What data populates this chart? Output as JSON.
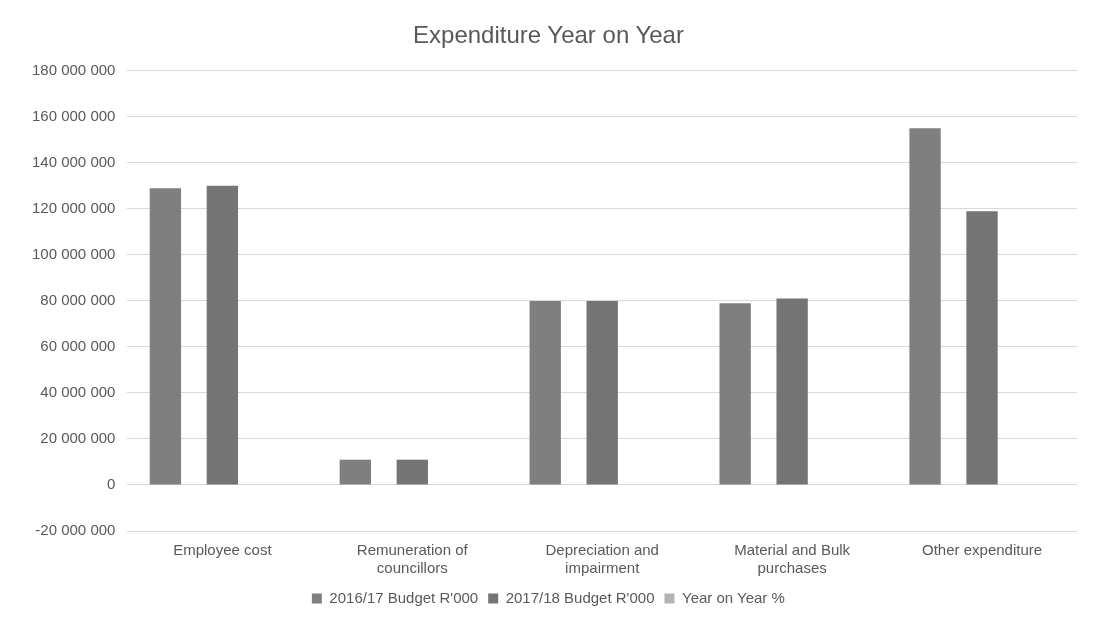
{
  "chart_data": {
    "type": "bar",
    "title": "Expenditure Year on Year",
    "categories": [
      "Employee cost",
      "Remuneration of councillors",
      "Depreciation and impairment",
      "Material and Bulk purchases",
      "Other expenditure"
    ],
    "series": [
      {
        "name": "2016/17 Budget R'000",
        "color": "#7f7f7f",
        "values": [
          129000000,
          11000000,
          80000000,
          79000000,
          155000000
        ]
      },
      {
        "name": "2017/18 Budget R'000",
        "color": "#747474",
        "values": [
          130000000,
          11000000,
          80000000,
          81000000,
          119000000
        ]
      },
      {
        "name": "Year on Year %",
        "color": "#b4b4b4",
        "values": [
          0,
          0,
          0,
          0,
          0
        ]
      }
    ],
    "ylim": [
      -20000000,
      180000000
    ],
    "yticks": [
      {
        "value": -20000000,
        "label": "-20 000 000"
      },
      0,
      {
        "value": 20000000,
        "label": "20 000 000"
      },
      {
        "value": 40000000,
        "label": "40 000 000"
      },
      {
        "value": 60000000,
        "label": "60 000 000"
      },
      {
        "value": 80000000,
        "label": "80 000 000"
      },
      {
        "value": 100000000,
        "label": "100 000 000"
      },
      {
        "value": 120000000,
        "label": "120 000 000"
      },
      {
        "value": 140000000,
        "label": "140 000 000"
      },
      {
        "value": 160000000,
        "label": "160 000 000"
      },
      {
        "value": 180000000,
        "label": "180 000 000"
      }
    ],
    "grid": "y",
    "legend": "bottom"
  }
}
